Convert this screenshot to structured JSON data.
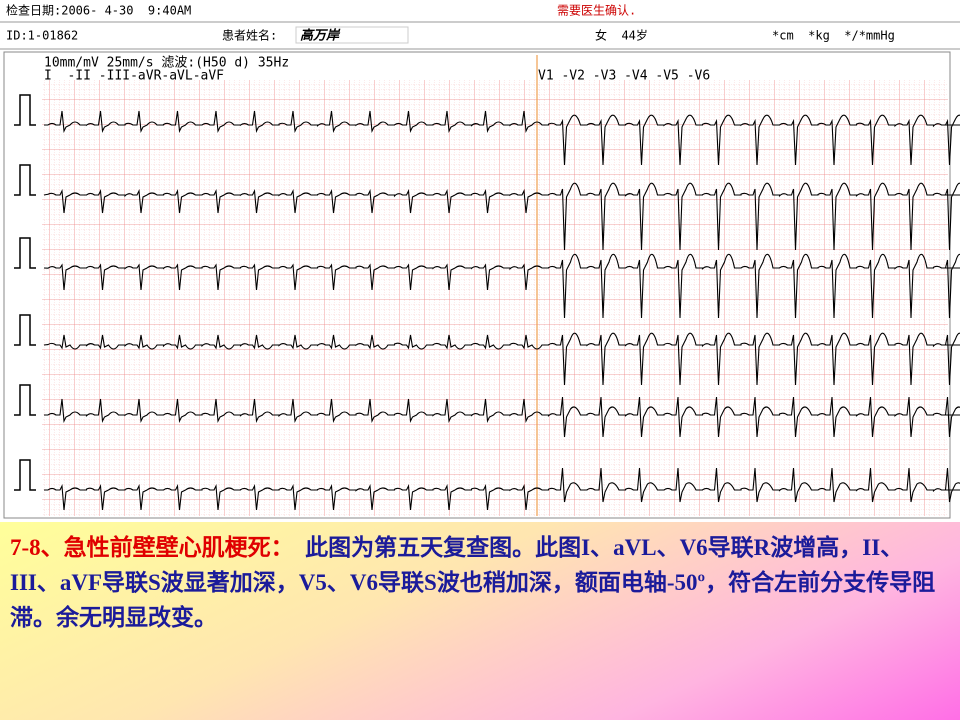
{
  "header": {
    "exam_date": "检查日期:2006- 4-30  9:40AM",
    "confirm_note": "需要医生确认.",
    "id": "ID:1-01862",
    "patient_label": "患者姓名:",
    "patient_name": "高万岸",
    "sex_age": "女  44岁",
    "units": "*cm  *kg  */*mmHg"
  },
  "ecg": {
    "settings": "10mm/mV 25mm/s 滤波:(H50 d) 35Hz",
    "limb_leads": "I  -II -III-aVR-aVL-aVF",
    "chest_leads": "V1 -V2 -V3 -V4 -V5 -V6"
  },
  "caption": {
    "title": "7-8、急性前壁壁心肌梗死：",
    "body": "此图为第五天复查图。此图I、aVL、V6导联R波增高，II、III、aVF导联S波显著加深，V5、V6导联S波也稍加深，额面电轴-50º，符合左前分支传导阻滞。余无明显改变。"
  }
}
